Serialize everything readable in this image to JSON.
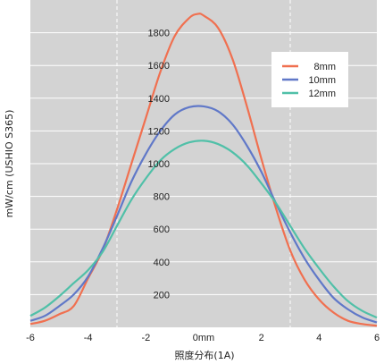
{
  "chart_data": {
    "type": "line",
    "xlabel": "照度分布(1A)",
    "ylabel": "mW/cm (USHIO S365)",
    "xlim": [
      -6,
      6
    ],
    "ylim": [
      0,
      2000
    ],
    "x_ticks": [
      -6,
      -4,
      -2,
      0,
      2,
      4,
      6
    ],
    "x_tick_labels": [
      "-6",
      "-4",
      "-2",
      "0mm",
      "2",
      "4",
      "6"
    ],
    "y_ticks": [
      200,
      400,
      600,
      800,
      1000,
      1200,
      1400,
      1600,
      1800
    ],
    "y_tick_labels": [
      "200",
      "400",
      "600",
      "800",
      "1000",
      "1200",
      "1400",
      "1600",
      "1800"
    ],
    "reference_lines_x": [
      -3,
      3
    ],
    "grid": true,
    "legend_position": "top-right",
    "colors": {
      "plot_background": "#d3d3d3",
      "grid": "#ffffff"
    },
    "series": [
      {
        "name": "8mm",
        "color": "#f07050",
        "x": [
          -6,
          -5.5,
          -5,
          -4.5,
          -4,
          -3.5,
          -3,
          -2.5,
          -2,
          -1.5,
          -1,
          -0.5,
          -0.2,
          0,
          0.5,
          1,
          1.5,
          2,
          2.5,
          3,
          3.5,
          4,
          4.5,
          5,
          5.5,
          6
        ],
        "y": [
          20,
          40,
          80,
          130,
          300,
          470,
          720,
          1000,
          1280,
          1560,
          1780,
          1890,
          1915,
          1905,
          1830,
          1640,
          1350,
          1030,
          730,
          470,
          290,
          170,
          90,
          40,
          20,
          10
        ]
      },
      {
        "name": "10mm",
        "color": "#6078c8",
        "x": [
          -6,
          -5.5,
          -5,
          -4.5,
          -4,
          -3.5,
          -3,
          -2.5,
          -2,
          -1.5,
          -1,
          -0.5,
          0,
          0.5,
          1,
          1.5,
          2,
          2.5,
          3,
          3.5,
          4,
          4.5,
          5,
          5.5,
          6
        ],
        "y": [
          40,
          70,
          130,
          200,
          310,
          480,
          680,
          890,
          1060,
          1200,
          1300,
          1345,
          1350,
          1320,
          1240,
          1110,
          950,
          760,
          580,
          420,
          290,
          180,
          110,
          60,
          30
        ]
      },
      {
        "name": "12mm",
        "color": "#50c0a8",
        "x": [
          -6,
          -5.5,
          -5,
          -4.5,
          -4,
          -3.5,
          -3,
          -2.5,
          -2,
          -1.5,
          -1,
          -0.5,
          0,
          0.5,
          1,
          1.5,
          2,
          2.5,
          3,
          3.5,
          4,
          4.5,
          5,
          5.5,
          6
        ],
        "y": [
          70,
          120,
          190,
          270,
          350,
          460,
          620,
          780,
          910,
          1020,
          1090,
          1130,
          1140,
          1120,
          1070,
          990,
          880,
          760,
          620,
          480,
          360,
          250,
          160,
          100,
          60
        ]
      }
    ]
  }
}
